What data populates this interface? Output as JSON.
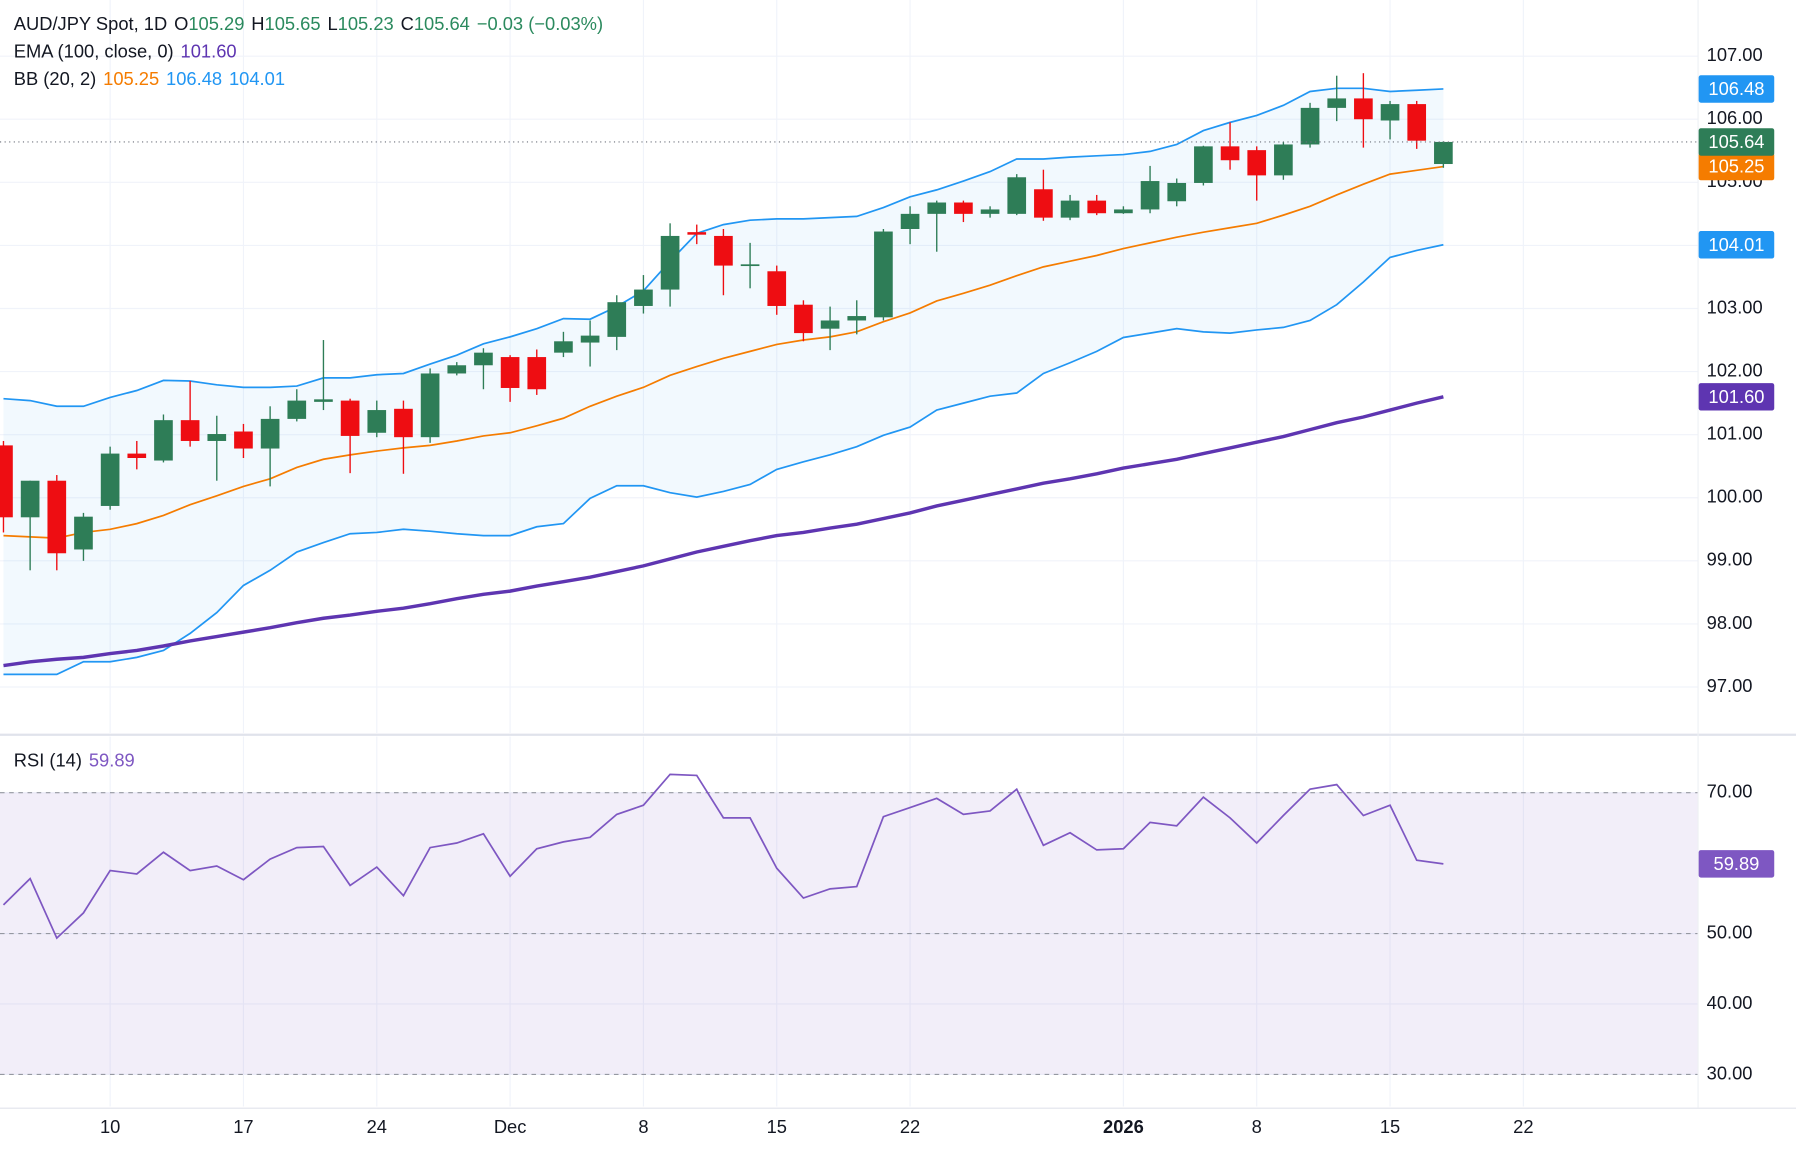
{
  "chart_data": [
    {
      "type": "candlestick",
      "title": "AUD/JPY Spot, 1D",
      "ohlc_labels": [
        "O",
        "H",
        "L",
        "C"
      ],
      "change": "−0.03 (−0.03%)",
      "legend_color": "#2b8a5e",
      "up_color": "#2e7d57",
      "down_color": "#ee0d12",
      "xlim": [
        -0.13,
        63.53
      ],
      "ylim": [
        96.27,
        107.89
      ],
      "yticks": [
        {
          "value": 97,
          "label": "97.00"
        },
        {
          "value": 98,
          "label": "98.00"
        },
        {
          "value": 99,
          "label": "99.00"
        },
        {
          "value": 100,
          "label": "100.00"
        },
        {
          "value": 101,
          "label": "101.00"
        },
        {
          "value": 102,
          "label": "102.00"
        },
        {
          "value": 103,
          "label": "103.00"
        },
        {
          "value": 104,
          "label": "104.00"
        },
        {
          "value": 105,
          "label": "105.00"
        },
        {
          "value": 106,
          "label": "106.00"
        },
        {
          "value": 107,
          "label": "107.00"
        }
      ],
      "grid": true,
      "last_price_line": true,
      "open": [
        100.83,
        99.69,
        100.27,
        99.18,
        99.87,
        100.7,
        100.59,
        101.23,
        100.9,
        101.05,
        100.78,
        101.25,
        101.52,
        101.54,
        101.03,
        101.41,
        100.96,
        101.97,
        102.1,
        102.23,
        102.23,
        102.3,
        102.46,
        102.55,
        103.04,
        103.3,
        104.21,
        104.15,
        103.68,
        103.59,
        103.06,
        102.68,
        102.81,
        102.86,
        104.26,
        104.5,
        104.68,
        104.5,
        104.5,
        104.89,
        104.44,
        104.71,
        104.51,
        104.57,
        104.7,
        104.99,
        105.57,
        105.51,
        105.11,
        105.6,
        106.18,
        106.33,
        105.98,
        106.24,
        105.29
      ],
      "high": [
        100.9,
        100.27,
        100.36,
        99.76,
        100.81,
        100.9,
        101.32,
        101.85,
        101.3,
        101.17,
        101.45,
        101.72,
        102.5,
        101.57,
        101.54,
        101.54,
        102.05,
        102.15,
        102.37,
        102.26,
        102.35,
        102.63,
        102.81,
        103.21,
        103.53,
        104.35,
        104.33,
        104.26,
        104.04,
        103.68,
        103.13,
        103.03,
        103.13,
        104.26,
        104.62,
        104.71,
        104.71,
        104.62,
        105.13,
        105.2,
        104.8,
        104.8,
        104.62,
        105.26,
        105.06,
        105.58,
        105.95,
        105.57,
        105.64,
        106.26,
        106.69,
        106.73,
        106.29,
        106.29,
        105.65
      ],
      "low": [
        99.45,
        98.85,
        98.85,
        99.0,
        99.81,
        100.45,
        100.56,
        100.81,
        100.27,
        100.63,
        100.18,
        101.21,
        101.39,
        100.39,
        100.96,
        100.38,
        100.87,
        101.94,
        101.72,
        101.52,
        101.63,
        102.23,
        102.08,
        102.34,
        102.92,
        103.03,
        104.02,
        103.21,
        103.32,
        102.9,
        102.48,
        102.34,
        102.59,
        102.81,
        104.02,
        103.9,
        104.37,
        104.44,
        104.48,
        104.39,
        104.4,
        104.48,
        104.5,
        104.51,
        104.62,
        104.95,
        105.2,
        104.71,
        105.04,
        105.55,
        105.97,
        105.55,
        105.68,
        105.53,
        105.23
      ],
      "close": [
        99.69,
        100.27,
        99.12,
        99.7,
        100.7,
        100.63,
        101.23,
        100.9,
        101.01,
        100.78,
        101.25,
        101.54,
        101.56,
        100.98,
        101.39,
        100.96,
        101.97,
        102.1,
        102.3,
        101.74,
        101.72,
        102.48,
        102.57,
        103.1,
        103.3,
        104.15,
        104.17,
        103.68,
        103.7,
        103.04,
        102.61,
        102.81,
        102.88,
        104.22,
        104.5,
        104.68,
        104.5,
        104.57,
        105.08,
        104.44,
        104.71,
        104.51,
        104.57,
        105.02,
        104.99,
        105.57,
        105.35,
        105.11,
        105.6,
        106.18,
        106.33,
        106.0,
        106.24,
        105.66,
        105.64
      ],
      "overlays": [
        {
          "name": "EMA (100, close, 0)",
          "color": "#5e35b1",
          "width": 3,
          "last_label": "101.60",
          "values": [
            97.34,
            97.4,
            97.44,
            97.47,
            97.53,
            97.58,
            97.65,
            97.73,
            97.8,
            97.87,
            97.94,
            98.02,
            98.09,
            98.14,
            98.2,
            98.25,
            98.32,
            98.4,
            98.47,
            98.52,
            98.6,
            98.67,
            98.74,
            98.83,
            98.92,
            99.03,
            99.14,
            99.23,
            99.32,
            99.4,
            99.45,
            99.52,
            99.58,
            99.67,
            99.76,
            99.87,
            99.96,
            100.05,
            100.14,
            100.23,
            100.3,
            100.38,
            100.47,
            100.54,
            100.61,
            100.7,
            100.79,
            100.88,
            100.97,
            101.08,
            101.19,
            101.28,
            101.39,
            101.5,
            101.6
          ]
        }
      ],
      "bands": [
        {
          "name": "BB (20, 2)",
          "fill": "rgba(33,150,243,0.06)",
          "width": 1.5,
          "lines": [
            {
              "color": "#f57c00",
              "values": [
                99.4,
                99.38,
                99.36,
                99.45,
                99.5,
                99.59,
                99.72,
                99.89,
                100.03,
                100.18,
                100.3,
                100.48,
                100.61,
                100.68,
                100.74,
                100.79,
                100.83,
                100.9,
                100.98,
                101.03,
                101.14,
                101.26,
                101.45,
                101.61,
                101.75,
                101.94,
                102.08,
                102.21,
                102.32,
                102.43,
                102.5,
                102.55,
                102.63,
                102.79,
                102.93,
                103.12,
                103.24,
                103.37,
                103.52,
                103.66,
                103.75,
                103.84,
                103.95,
                104.04,
                104.13,
                104.21,
                104.28,
                104.35,
                104.48,
                104.62,
                104.8,
                104.97,
                105.13,
                105.19,
                105.25
              ]
            },
            {
              "color": "#2196f3",
              "values": [
                101.57,
                101.54,
                101.45,
                101.45,
                101.59,
                101.7,
                101.86,
                101.85,
                101.79,
                101.75,
                101.75,
                101.77,
                101.9,
                101.9,
                101.95,
                101.97,
                102.12,
                102.26,
                102.44,
                102.55,
                102.68,
                102.84,
                102.83,
                103.03,
                103.28,
                103.75,
                104.19,
                104.33,
                104.4,
                104.42,
                104.42,
                104.44,
                104.46,
                104.6,
                104.77,
                104.88,
                105.02,
                105.17,
                105.37,
                105.37,
                105.4,
                105.42,
                105.44,
                105.49,
                105.6,
                105.82,
                105.95,
                106.06,
                106.22,
                106.44,
                106.49,
                106.49,
                106.44,
                106.46,
                106.48
              ]
            },
            {
              "color": "#2196f3",
              "values": [
                97.2,
                97.2,
                97.2,
                97.4,
                97.4,
                97.47,
                97.58,
                97.85,
                98.18,
                98.61,
                98.85,
                99.14,
                99.29,
                99.43,
                99.45,
                99.5,
                99.47,
                99.43,
                99.4,
                99.4,
                99.54,
                99.59,
                99.99,
                100.19,
                100.19,
                100.08,
                100.01,
                100.1,
                100.21,
                100.45,
                100.57,
                100.68,
                100.81,
                100.99,
                101.12,
                101.39,
                101.5,
                101.61,
                101.66,
                101.97,
                102.14,
                102.32,
                102.54,
                102.61,
                102.68,
                102.63,
                102.61,
                102.66,
                102.7,
                102.81,
                103.06,
                103.42,
                103.81,
                103.92,
                104.01
              ]
            }
          ]
        }
      ]
    },
    {
      "type": "line",
      "name": "RSI (14)",
      "color": "#7e57c2",
      "band_color": "rgba(126,87,194,0.1)",
      "band": [
        30,
        70
      ],
      "levels": [
        30,
        50,
        70
      ],
      "xlim": [
        -0.13,
        63.53
      ],
      "ylim": [
        25.45,
        77.97
      ],
      "yticks": [
        {
          "value": 30,
          "label": "30.00"
        },
        {
          "value": 40,
          "label": "40.00"
        },
        {
          "value": 50,
          "label": "50.00"
        },
        {
          "value": 70,
          "label": "70.00"
        }
      ],
      "xticks": [
        {
          "value": 4,
          "label": "10"
        },
        {
          "value": 9,
          "label": "17"
        },
        {
          "value": 14,
          "label": "24"
        },
        {
          "value": 19,
          "label": "Dec"
        },
        {
          "value": 24,
          "label": "8"
        },
        {
          "value": 29,
          "label": "15"
        },
        {
          "value": 34,
          "label": "22"
        },
        {
          "value": 42,
          "label": "2026",
          "bold": true
        },
        {
          "value": 47,
          "label": "8"
        },
        {
          "value": 52,
          "label": "15"
        },
        {
          "value": 57,
          "label": "22"
        }
      ],
      "values": [
        54.07,
        57.8,
        49.35,
        52.93,
        58.94,
        58.46,
        61.54,
        58.94,
        59.59,
        57.64,
        60.57,
        62.2,
        62.36,
        56.83,
        59.43,
        55.37,
        62.2,
        62.85,
        64.15,
        58.13,
        62.03,
        63.01,
        63.66,
        66.91,
        68.21,
        72.6,
        72.44,
        66.42,
        66.42,
        59.27,
        55.04,
        56.34,
        56.67,
        66.59,
        67.89,
        69.19,
        66.91,
        67.4,
        70.49,
        62.52,
        64.31,
        61.87,
        62.03,
        65.77,
        65.28,
        69.35,
        66.42,
        62.85,
        66.75,
        70.49,
        71.14,
        66.75,
        68.21,
        60.41,
        59.89
      ]
    }
  ]
}
